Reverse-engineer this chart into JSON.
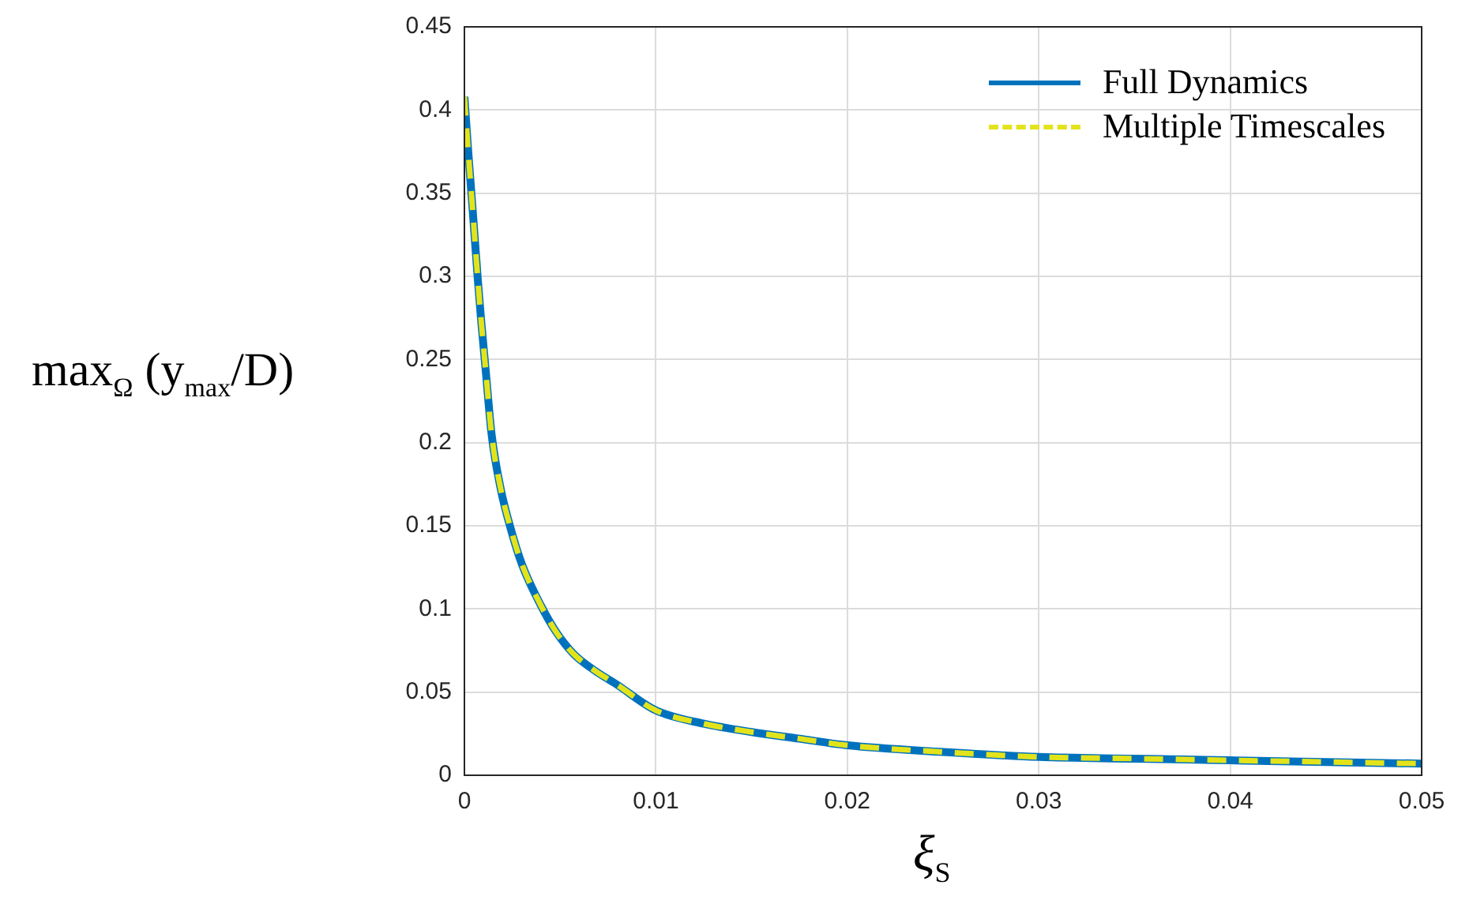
{
  "chart_data": {
    "type": "line",
    "xlabel": "ξ$_{S}$",
    "ylabel": "max$_{Ω}$ (y$_{max}$/D)",
    "x": [
      0,
      0.0002,
      0.00045,
      0.0007,
      0.00087,
      0.0011,
      0.00142,
      0.0019,
      0.0024,
      0.003,
      0.004,
      0.0048,
      0.0057,
      0.0068,
      0.0079,
      0.01,
      0.0125,
      0.015,
      0.0175,
      0.02,
      0.025,
      0.03,
      0.035,
      0.04,
      0.045,
      0.05
    ],
    "series": [
      {
        "name": "Full Dynamics",
        "color": "#0072bd",
        "line_style": "solid",
        "values": [
          0.408,
          0.375,
          0.337,
          0.298,
          0.274,
          0.245,
          0.205,
          0.172,
          0.149,
          0.127,
          0.102,
          0.086,
          0.073,
          0.063,
          0.055,
          0.039,
          0.031,
          0.026,
          0.022,
          0.018,
          0.014,
          0.011,
          0.01,
          0.009,
          0.008,
          0.007
        ]
      },
      {
        "name": "Multiple Timescales",
        "color": "#e3e31c",
        "line_style": "dashed",
        "values": [
          0.408,
          0.375,
          0.337,
          0.298,
          0.274,
          0.245,
          0.205,
          0.172,
          0.149,
          0.127,
          0.102,
          0.086,
          0.073,
          0.063,
          0.055,
          0.039,
          0.031,
          0.026,
          0.022,
          0.018,
          0.014,
          0.011,
          0.01,
          0.009,
          0.008,
          0.007
        ]
      }
    ],
    "xlim": [
      0,
      0.05
    ],
    "xticks": [
      0,
      0.01,
      0.02,
      0.03,
      0.04,
      0.05
    ],
    "ylim": [
      0,
      0.45
    ],
    "yticks": [
      0,
      0.05,
      0.1,
      0.15,
      0.2,
      0.25,
      0.3,
      0.35,
      0.4,
      0.45
    ],
    "grid": true,
    "legend": "top right",
    "marker": "none"
  }
}
